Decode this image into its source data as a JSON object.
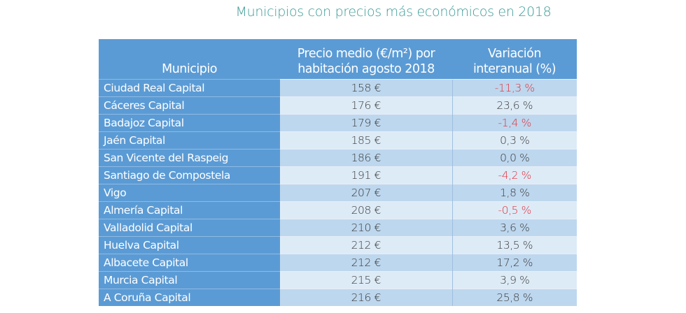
{
  "title": "Municipios con precios más económicos en 2018",
  "colors": {
    "header_bg": "#5b9bd5",
    "title": "#3a9a96",
    "negative": "#e0303a",
    "row_odd": "#bdd7ee",
    "row_even": "#ddebf7"
  },
  "table": {
    "headers": [
      "Municipio",
      "Precio medio (€/m²) por habitación agosto 2018",
      "Variación interanual (%)"
    ],
    "header_lines": {
      "h1": "Municipio",
      "h2a": "Precio medio (€/m²) por",
      "h2b": "habitación agosto 2018",
      "h3a": "Variación",
      "h3b": "interanual (%)"
    },
    "rows": [
      {
        "municipio": "Ciudad Real Capital",
        "precio": "158 €",
        "variacion": "-11,3 %",
        "negative": true
      },
      {
        "municipio": "Cáceres Capital",
        "precio": "176 €",
        "variacion": "23,6 %",
        "negative": false
      },
      {
        "municipio": "Badajoz Capital",
        "precio": "179 €",
        "variacion": "-1,4 %",
        "negative": true
      },
      {
        "municipio": "Jaén Capital",
        "precio": "185 €",
        "variacion": "0,3 %",
        "negative": false
      },
      {
        "municipio": "San Vicente del Raspeig",
        "precio": "186 €",
        "variacion": "0,0 %",
        "negative": false
      },
      {
        "municipio": "Santiago de Compostela",
        "precio": "191 €",
        "variacion": "-4,2 %",
        "negative": true
      },
      {
        "municipio": "Vigo",
        "precio": "207 €",
        "variacion": "1,8 %",
        "negative": false
      },
      {
        "municipio": "Almería Capital",
        "precio": "208 €",
        "variacion": "-0,5 %",
        "negative": true
      },
      {
        "municipio": "Valladolid Capital",
        "precio": "210 €",
        "variacion": "3,6 %",
        "negative": false
      },
      {
        "municipio": "Huelva Capital",
        "precio": "212 €",
        "variacion": "13,5 %",
        "negative": false
      },
      {
        "municipio": "Albacete Capital",
        "precio": "212 €",
        "variacion": "17,2 %",
        "negative": false
      },
      {
        "municipio": "Murcia Capital",
        "precio": "215 €",
        "variacion": "3,9 %",
        "negative": false
      },
      {
        "municipio": "A Coruña Capital",
        "precio": "216 €",
        "variacion": "25,8 %",
        "negative": false
      }
    ]
  }
}
